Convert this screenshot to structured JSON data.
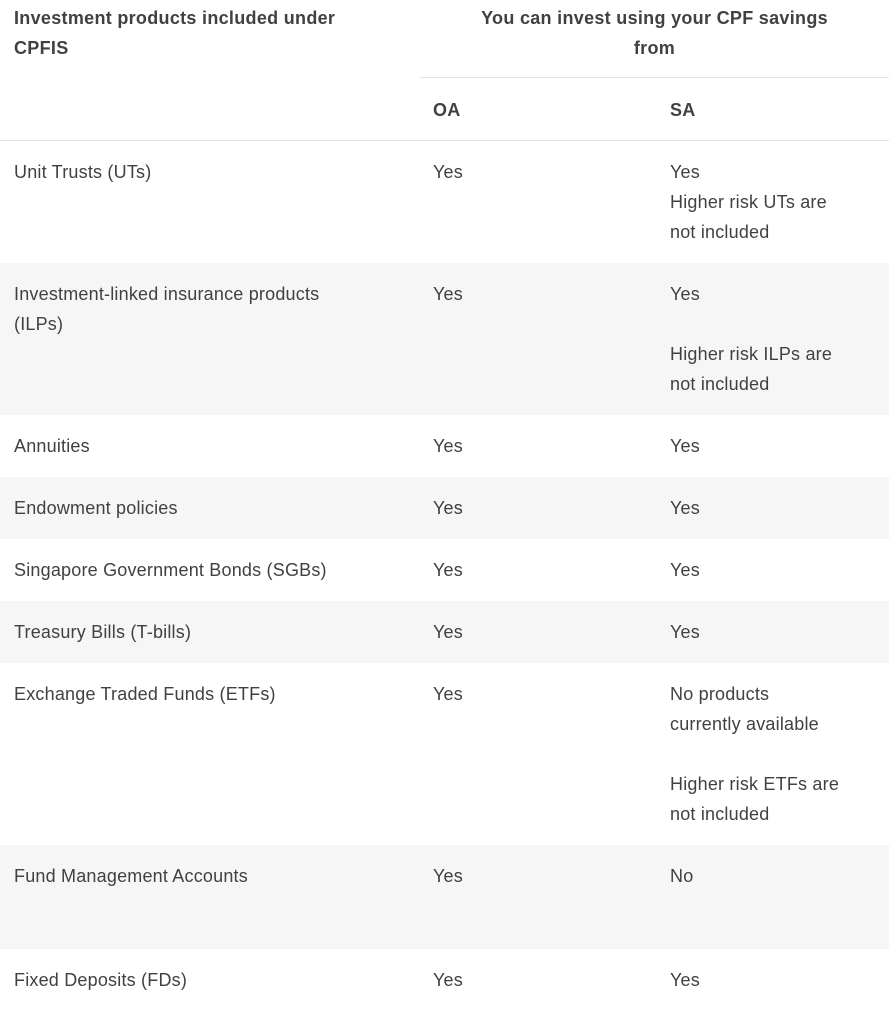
{
  "theme": {
    "text_color": "#414141",
    "stripe_color": "#f6f6f6",
    "divider_color": "#e4e4e4",
    "background_color": "#ffffff"
  },
  "table": {
    "product_column_header": "Investment products included under\nCPFIS",
    "group_header": "You can invest using your CPF savings\nfrom",
    "account_columns": [
      "OA",
      "SA"
    ],
    "rows": [
      {
        "product": "Unit Trusts (UTs)",
        "oa": [
          "Yes"
        ],
        "sa": [
          "Yes",
          "Higher risk UTs are\nnot included"
        ]
      },
      {
        "product": "Investment-linked insurance products\n(ILPs)",
        "oa": [
          "Yes"
        ],
        "sa": [
          "Yes",
          "",
          "Higher risk ILPs are\nnot included"
        ]
      },
      {
        "product": "Annuities",
        "oa": [
          "Yes"
        ],
        "sa": [
          "Yes"
        ]
      },
      {
        "product": "Endowment policies",
        "oa": [
          "Yes"
        ],
        "sa": [
          "Yes"
        ]
      },
      {
        "product": "Singapore Government Bonds (SGBs)",
        "oa": [
          "Yes"
        ],
        "sa": [
          "Yes"
        ]
      },
      {
        "product": "Treasury Bills (T-bills)",
        "oa": [
          "Yes"
        ],
        "sa": [
          "Yes"
        ]
      },
      {
        "product": "Exchange Traded Funds (ETFs)",
        "oa": [
          "Yes"
        ],
        "sa": [
          "No products\ncurrently available",
          "",
          "Higher risk ETFs are\nnot included"
        ]
      },
      {
        "product": "Fund Management Accounts",
        "oa": [
          "Yes"
        ],
        "sa": [
          "No"
        ]
      },
      {
        "product": "Fixed Deposits (FDs)",
        "oa": [
          "Yes"
        ],
        "sa": [
          "Yes"
        ]
      }
    ]
  }
}
